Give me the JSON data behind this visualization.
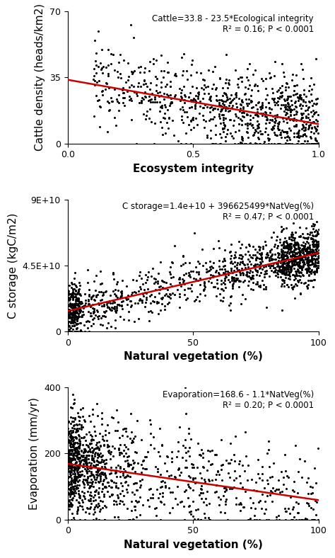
{
  "plot1": {
    "equation": "Cattle=33.8 - 23.5*Ecological integrity",
    "r2_text": "R² = 0.16; P < 0.0001",
    "xlabel": "Ecosystem integrity",
    "ylabel": "Cattle density (heads/km2)",
    "xlim": [
      0.0,
      1.0
    ],
    "ylim": [
      0,
      70
    ],
    "yticks": [
      0,
      35,
      70
    ],
    "xticks": [
      0.0,
      0.5,
      1.0
    ],
    "intercept": 33.8,
    "slope": -23.5,
    "x_range": [
      0.0,
      1.0
    ],
    "seed": 42,
    "n_points": 900,
    "scatter_y_noise": 11,
    "line_color": "#cc0000"
  },
  "plot2": {
    "equation": "C storage=1.4e+10 + 396625499*NatVeg(%)",
    "r2_text": "R² = 0.47; P < 0.0001",
    "xlabel": "Natural vegetation (%)",
    "ylabel": "C storage (kgC/m2)",
    "xlim": [
      0,
      100
    ],
    "ylim": [
      0,
      90000000000.0
    ],
    "yticks": [
      0,
      45000000000.0,
      90000000000.0
    ],
    "ytick_labels": [
      "0",
      "4.5E+10",
      "9E+10"
    ],
    "xticks": [
      0,
      50,
      100
    ],
    "intercept": 14000000000.0,
    "slope": 396625499,
    "x_range": [
      0,
      100
    ],
    "seed": 123,
    "n_points": 1500,
    "scatter_y_noise": 9000000000.0,
    "line_color": "#cc0000"
  },
  "plot3": {
    "equation": "Evaporation=168.6 - 1.1*NatVeg(%)",
    "r2_text": "R² = 0.20; P < 0.0001",
    "xlabel": "Natural vegetation (%)",
    "ylabel": "Evaporation (mm/yr)",
    "xlim": [
      0,
      100
    ],
    "ylim": [
      0,
      400
    ],
    "yticks": [
      0,
      200,
      400
    ],
    "xticks": [
      0,
      50,
      100
    ],
    "intercept": 168.6,
    "slope": -1.1,
    "x_range": [
      0,
      100
    ],
    "seed": 77,
    "n_points": 1200,
    "scatter_y_noise": 75,
    "line_color": "#cc0000"
  },
  "figure_bg": "#ffffff",
  "dot_color": "#000000",
  "dot_size": 5,
  "dot_alpha": 1.0,
  "annotation_fontsize": 8.5,
  "label_fontsize": 11,
  "tick_fontsize": 9
}
